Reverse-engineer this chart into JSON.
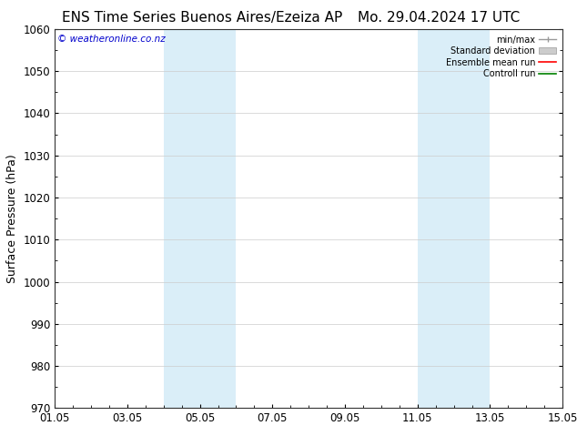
{
  "title_left": "ENS Time Series Buenos Aires/Ezeiza AP",
  "title_right": "Mo. 29.04.2024 17 UTC",
  "ylabel": "Surface Pressure (hPa)",
  "ylim": [
    970,
    1060
  ],
  "yticks": [
    970,
    980,
    990,
    1000,
    1010,
    1020,
    1030,
    1040,
    1050,
    1060
  ],
  "xtick_labels": [
    "01.05",
    "03.05",
    "05.05",
    "07.05",
    "09.05",
    "11.05",
    "13.05",
    "15.05"
  ],
  "xtick_positions": [
    0,
    2,
    4,
    6,
    8,
    10,
    12,
    14
  ],
  "xlim": [
    0,
    14
  ],
  "shaded_bands": [
    {
      "xmin": 3.0,
      "xmax": 5.0,
      "color": "#daeef8"
    },
    {
      "xmin": 10.0,
      "xmax": 12.0,
      "color": "#daeef8"
    }
  ],
  "watermark": "© weatheronline.co.nz",
  "watermark_color": "#0000cc",
  "bg_color": "#ffffff",
  "grid_color": "#cccccc",
  "title_fontsize": 11,
  "tick_fontsize": 8.5,
  "ylabel_fontsize": 9
}
